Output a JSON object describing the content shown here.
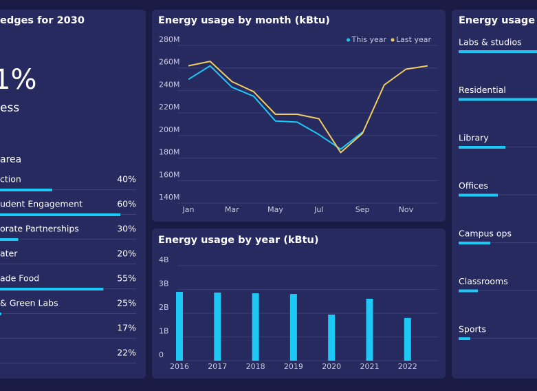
{
  "left_panel": {
    "title": "edges for 2030",
    "big_value": "1%",
    "big_caption": "ess",
    "section_title": "area",
    "items": [
      {
        "label": "ction",
        "value": 40,
        "value_label": "40%"
      },
      {
        "label": "udent Engagement",
        "value": 60,
        "value_label": "60%"
      },
      {
        "label": "orate Partnerships",
        "value": 30,
        "value_label": "30%"
      },
      {
        "label": "ater",
        "value": 20,
        "value_label": "20%"
      },
      {
        "label": "ade Food",
        "value": 55,
        "value_label": "55%"
      },
      {
        "label": "& Green Labs",
        "value": 25,
        "value_label": "25%"
      },
      {
        "label": null,
        "value": 17,
        "value_label": "17%"
      },
      {
        "label": null,
        "value": 22,
        "value_label": "22%"
      }
    ]
  },
  "chart_data": [
    {
      "type": "line",
      "title": "Energy usage by month (kBtu)",
      "categories": [
        "Jan",
        null,
        "Mar",
        null,
        "May",
        null,
        "Jul",
        null,
        "Sep",
        null,
        "Nov",
        null
      ],
      "series": [
        {
          "name": "This year",
          "color": "#1ec8f5",
          "values": [
            245000000,
            257000000,
            238000000,
            230000000,
            208000000,
            207000000,
            196000000,
            183000000,
            198000000,
            null,
            null,
            null
          ]
        },
        {
          "name": "Last year",
          "color": "#f2cd63",
          "values": [
            257000000,
            261000000,
            243000000,
            234000000,
            214000000,
            214000000,
            210000000,
            180000000,
            197000000,
            240000000,
            254000000,
            257000000
          ]
        }
      ],
      "ylim": [
        140000000,
        280000000
      ],
      "yticks": [
        {
          "value": 140000000,
          "label": "140M"
        },
        {
          "value": 160000000,
          "label": "160M"
        },
        {
          "value": 180000000,
          "label": "180M"
        },
        {
          "value": 200000000,
          "label": "200M"
        },
        {
          "value": 220000000,
          "label": "220M"
        },
        {
          "value": 240000000,
          "label": "240M"
        },
        {
          "value": 260000000,
          "label": "260M"
        },
        {
          "value": 280000000,
          "label": "280M"
        }
      ],
      "grid": true,
      "legend": "top-right"
    },
    {
      "type": "bar",
      "title": "Energy usage by year (kBtu)",
      "categories": [
        "2016",
        "2017",
        "2018",
        "2019",
        "2020",
        "2021",
        "2022"
      ],
      "values": [
        2900000000,
        2870000000,
        2840000000,
        2810000000,
        1940000000,
        2610000000,
        1800000000
      ],
      "color": "#1ec8f5",
      "ylim": [
        0,
        4000000000
      ],
      "yticks": [
        0,
        {
          "value": 1000000000,
          "label": "1B"
        },
        {
          "value": 2000000000,
          "label": "2B"
        },
        {
          "value": 3000000000,
          "label": "3B"
        },
        {
          "value": 4000000000,
          "label": "4B"
        }
      ],
      "grid": true
    }
  ],
  "right_panel": {
    "title": "Energy usage by",
    "items": [
      {
        "label": "Labs & studios",
        "value": 130
      },
      {
        "label": "Residential",
        "value": 120
      },
      {
        "label": "Library",
        "value": 68
      },
      {
        "label": "Offices",
        "value": 57
      },
      {
        "label": "Campus ops",
        "value": 46
      },
      {
        "label": "Classrooms",
        "value": 28
      },
      {
        "label": "Sports",
        "value": 17
      }
    ]
  }
}
